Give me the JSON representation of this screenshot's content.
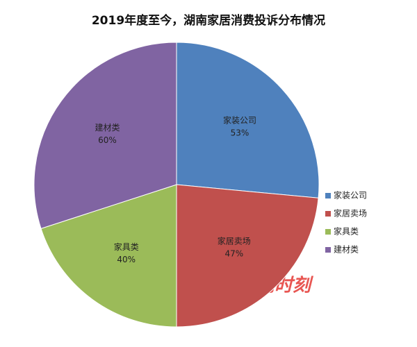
{
  "chart_data": {
    "type": "pie",
    "title": "2019年度至今，湖南家居消费投诉分布情况",
    "categories": [
      "家装公司",
      "家居卖场",
      "家具类",
      "建材类"
    ],
    "values": [
      53,
      47,
      40,
      60
    ],
    "value_labels": [
      "53%",
      "47%",
      "40%",
      "60%"
    ],
    "colors": [
      "#4f81bd",
      "#c0504d",
      "#9bbb59",
      "#8064a2"
    ],
    "legend": "right"
  },
  "watermark": "红网时刻"
}
